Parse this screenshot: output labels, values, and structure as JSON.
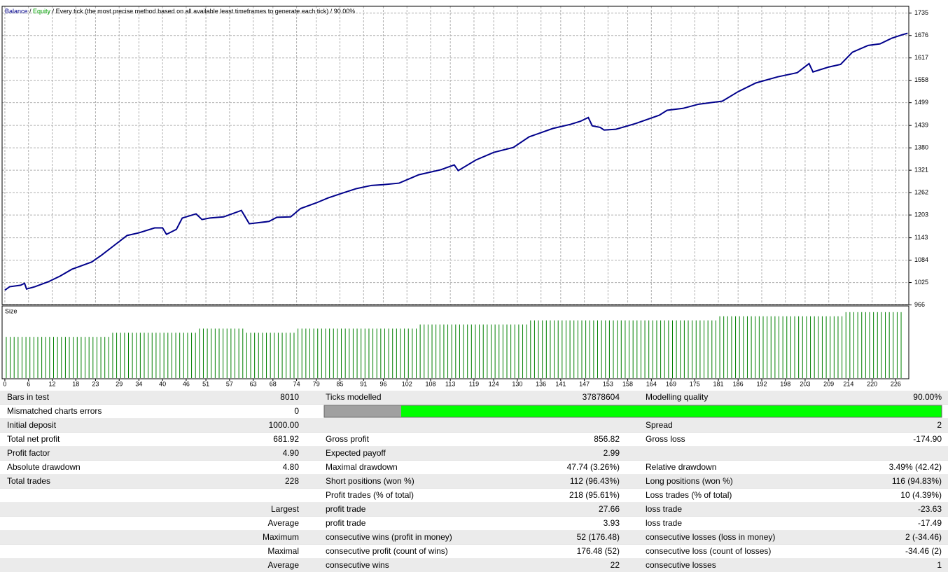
{
  "header": {
    "items": [
      "Balance",
      "Equity",
      "Every tick (the most precise method based on all available least timeframes to generate each tick)",
      "90.00%"
    ],
    "colors": [
      "#00008b",
      "#00a000",
      "#000000",
      "#000000"
    ],
    "separator": " / "
  },
  "chart_data": [
    {
      "type": "line",
      "grid": true,
      "x": [
        0,
        1.2,
        4,
        5,
        5.5,
        7.6,
        11,
        14,
        17,
        22,
        24.5,
        28,
        31,
        34,
        38,
        40,
        41,
        43.5,
        45,
        48.5,
        50,
        52,
        55.5,
        60,
        62,
        67,
        69,
        72.5,
        75,
        79,
        82,
        85.7,
        89,
        93,
        96,
        100,
        105,
        110.5,
        114,
        115,
        119.5,
        124,
        129,
        133,
        139,
        143.5,
        146,
        148,
        149,
        151,
        152,
        155,
        160,
        166,
        168,
        172,
        176,
        182,
        186,
        190.5,
        196,
        201,
        204,
        205,
        209,
        212,
        215,
        219,
        222,
        225,
        227.6,
        229
      ],
      "series": [
        {
          "name": "Balance",
          "color": "#00008b",
          "values": [
            1005,
            1014,
            1018,
            1023,
            1008,
            1014,
            1027,
            1042,
            1060,
            1079,
            1097,
            1125,
            1149,
            1156,
            1169,
            1169,
            1152,
            1165,
            1195,
            1206,
            1191,
            1195,
            1198,
            1215,
            1180,
            1186,
            1197,
            1198,
            1220,
            1235,
            1248,
            1261,
            1272,
            1281,
            1283,
            1287,
            1309,
            1322,
            1335,
            1320,
            1348,
            1368,
            1381,
            1409,
            1431,
            1442,
            1450,
            1460,
            1438,
            1434,
            1427,
            1429,
            1444,
            1466,
            1479,
            1484,
            1495,
            1503,
            1528,
            1551,
            1567,
            1578,
            1602,
            1580,
            1593,
            1600,
            1632,
            1650,
            1654,
            1669,
            1678,
            1682
          ]
        }
      ],
      "xlim": [
        -0.7,
        229.3
      ],
      "ylim": [
        967,
        1753
      ],
      "yticks": [
        1735,
        1676,
        1617,
        1558,
        1499,
        1439,
        1380,
        1321,
        1262,
        1203,
        1143,
        1084,
        1025,
        966
      ]
    },
    {
      "type": "bar",
      "title": "Size",
      "color": "#008000",
      "values": [
        0.1,
        0.1,
        0.1,
        0.1,
        0.1,
        0.1,
        0.1,
        0.1,
        0.1,
        0.1,
        0.1,
        0.1,
        0.1,
        0.1,
        0.1,
        0.1,
        0.1,
        0.1,
        0.1,
        0.1,
        0.1,
        0.1,
        0.1,
        0.1,
        0.1,
        0.1,
        0.1,
        0.11,
        0.11,
        0.11,
        0.11,
        0.11,
        0.11,
        0.11,
        0.11,
        0.11,
        0.11,
        0.11,
        0.11,
        0.11,
        0.11,
        0.11,
        0.11,
        0.11,
        0.11,
        0.11,
        0.11,
        0.11,
        0.11,
        0.12,
        0.12,
        0.12,
        0.12,
        0.12,
        0.12,
        0.12,
        0.12,
        0.12,
        0.12,
        0.12,
        0.12,
        0.11,
        0.11,
        0.11,
        0.11,
        0.11,
        0.11,
        0.11,
        0.11,
        0.11,
        0.11,
        0.11,
        0.11,
        0.11,
        0.12,
        0.12,
        0.12,
        0.12,
        0.12,
        0.12,
        0.12,
        0.12,
        0.12,
        0.12,
        0.12,
        0.12,
        0.12,
        0.12,
        0.12,
        0.12,
        0.12,
        0.12,
        0.12,
        0.12,
        0.12,
        0.12,
        0.12,
        0.12,
        0.12,
        0.12,
        0.12,
        0.12,
        0.12,
        0.12,
        0.12,
        0.13,
        0.13,
        0.13,
        0.13,
        0.13,
        0.13,
        0.13,
        0.13,
        0.13,
        0.13,
        0.13,
        0.13,
        0.13,
        0.13,
        0.13,
        0.13,
        0.13,
        0.13,
        0.13,
        0.13,
        0.13,
        0.13,
        0.13,
        0.13,
        0.13,
        0.13,
        0.13,
        0.13,
        0.14,
        0.14,
        0.14,
        0.14,
        0.14,
        0.14,
        0.14,
        0.14,
        0.14,
        0.14,
        0.14,
        0.14,
        0.14,
        0.14,
        0.14,
        0.14,
        0.14,
        0.14,
        0.14,
        0.14,
        0.14,
        0.14,
        0.14,
        0.14,
        0.14,
        0.14,
        0.14,
        0.14,
        0.14,
        0.14,
        0.14,
        0.14,
        0.14,
        0.14,
        0.14,
        0.14,
        0.14,
        0.14,
        0.14,
        0.14,
        0.14,
        0.14,
        0.14,
        0.14,
        0.14,
        0.14,
        0.14,
        0.14,
        0.15,
        0.15,
        0.15,
        0.15,
        0.15,
        0.15,
        0.15,
        0.15,
        0.15,
        0.15,
        0.15,
        0.15,
        0.15,
        0.15,
        0.15,
        0.15,
        0.15,
        0.15,
        0.15,
        0.15,
        0.15,
        0.15,
        0.15,
        0.15,
        0.15,
        0.15,
        0.15,
        0.15,
        0.15,
        0.15,
        0.15,
        0.15,
        0.16,
        0.16,
        0.16,
        0.16,
        0.16,
        0.16,
        0.16,
        0.16,
        0.16,
        0.16,
        0.16,
        0.16,
        0.16,
        0.16,
        0.16
      ],
      "xlim": [
        -0.7,
        229.3
      ],
      "ylim": [
        0,
        0.175
      ],
      "xticks": [
        0,
        6,
        12,
        18,
        23,
        29,
        34,
        40,
        46,
        51,
        57,
        63,
        68,
        74,
        79,
        85,
        91,
        96,
        102,
        108,
        113,
        119,
        124,
        130,
        136,
        141,
        147,
        153,
        158,
        164,
        169,
        175,
        181,
        186,
        192,
        198,
        203,
        209,
        214,
        220,
        226
      ]
    }
  ],
  "table": {
    "rows": [
      [
        "Bars in test",
        "8010",
        "Ticks modelled",
        "37878604",
        "Modelling quality",
        "90.00%"
      ],
      [
        "Mismatched charts errors",
        "0",
        null,
        null,
        null,
        null
      ],
      [
        "Initial deposit",
        "1000.00",
        null,
        null,
        "Spread",
        "2"
      ],
      [
        "Total net profit",
        "681.92",
        "Gross profit",
        "856.82",
        "Gross loss",
        "-174.90"
      ],
      [
        "Profit factor",
        "4.90",
        "Expected payoff",
        "2.99",
        null,
        null
      ],
      [
        "Absolute drawdown",
        "4.80",
        "Maximal drawdown",
        "47.74 (3.26%)",
        "Relative drawdown",
        "3.49% (42.42)"
      ],
      [
        "Total trades",
        "228",
        "Short positions (won %)",
        "112 (96.43%)",
        "Long positions (won %)",
        "116 (94.83%)"
      ],
      [
        null,
        null,
        "Profit trades (% of total)",
        "218 (95.61%)",
        "Loss trades (% of total)",
        "10 (4.39%)"
      ],
      [
        null,
        "Largest",
        "profit trade",
        "27.66",
        "loss trade",
        "-23.63"
      ],
      [
        null,
        "Average",
        "profit trade",
        "3.93",
        "loss trade",
        "-17.49"
      ],
      [
        null,
        "Maximum",
        "consecutive wins (profit in money)",
        "52 (176.48)",
        "consecutive losses (loss in money)",
        "2 (-34.46)"
      ],
      [
        null,
        "Maximal",
        "consecutive profit (count of wins)",
        "176.48 (52)",
        "consecutive loss (count of losses)",
        "-34.46 (2)"
      ],
      [
        null,
        "Average",
        "consecutive wins",
        "22",
        "consecutive losses",
        "1"
      ]
    ]
  }
}
